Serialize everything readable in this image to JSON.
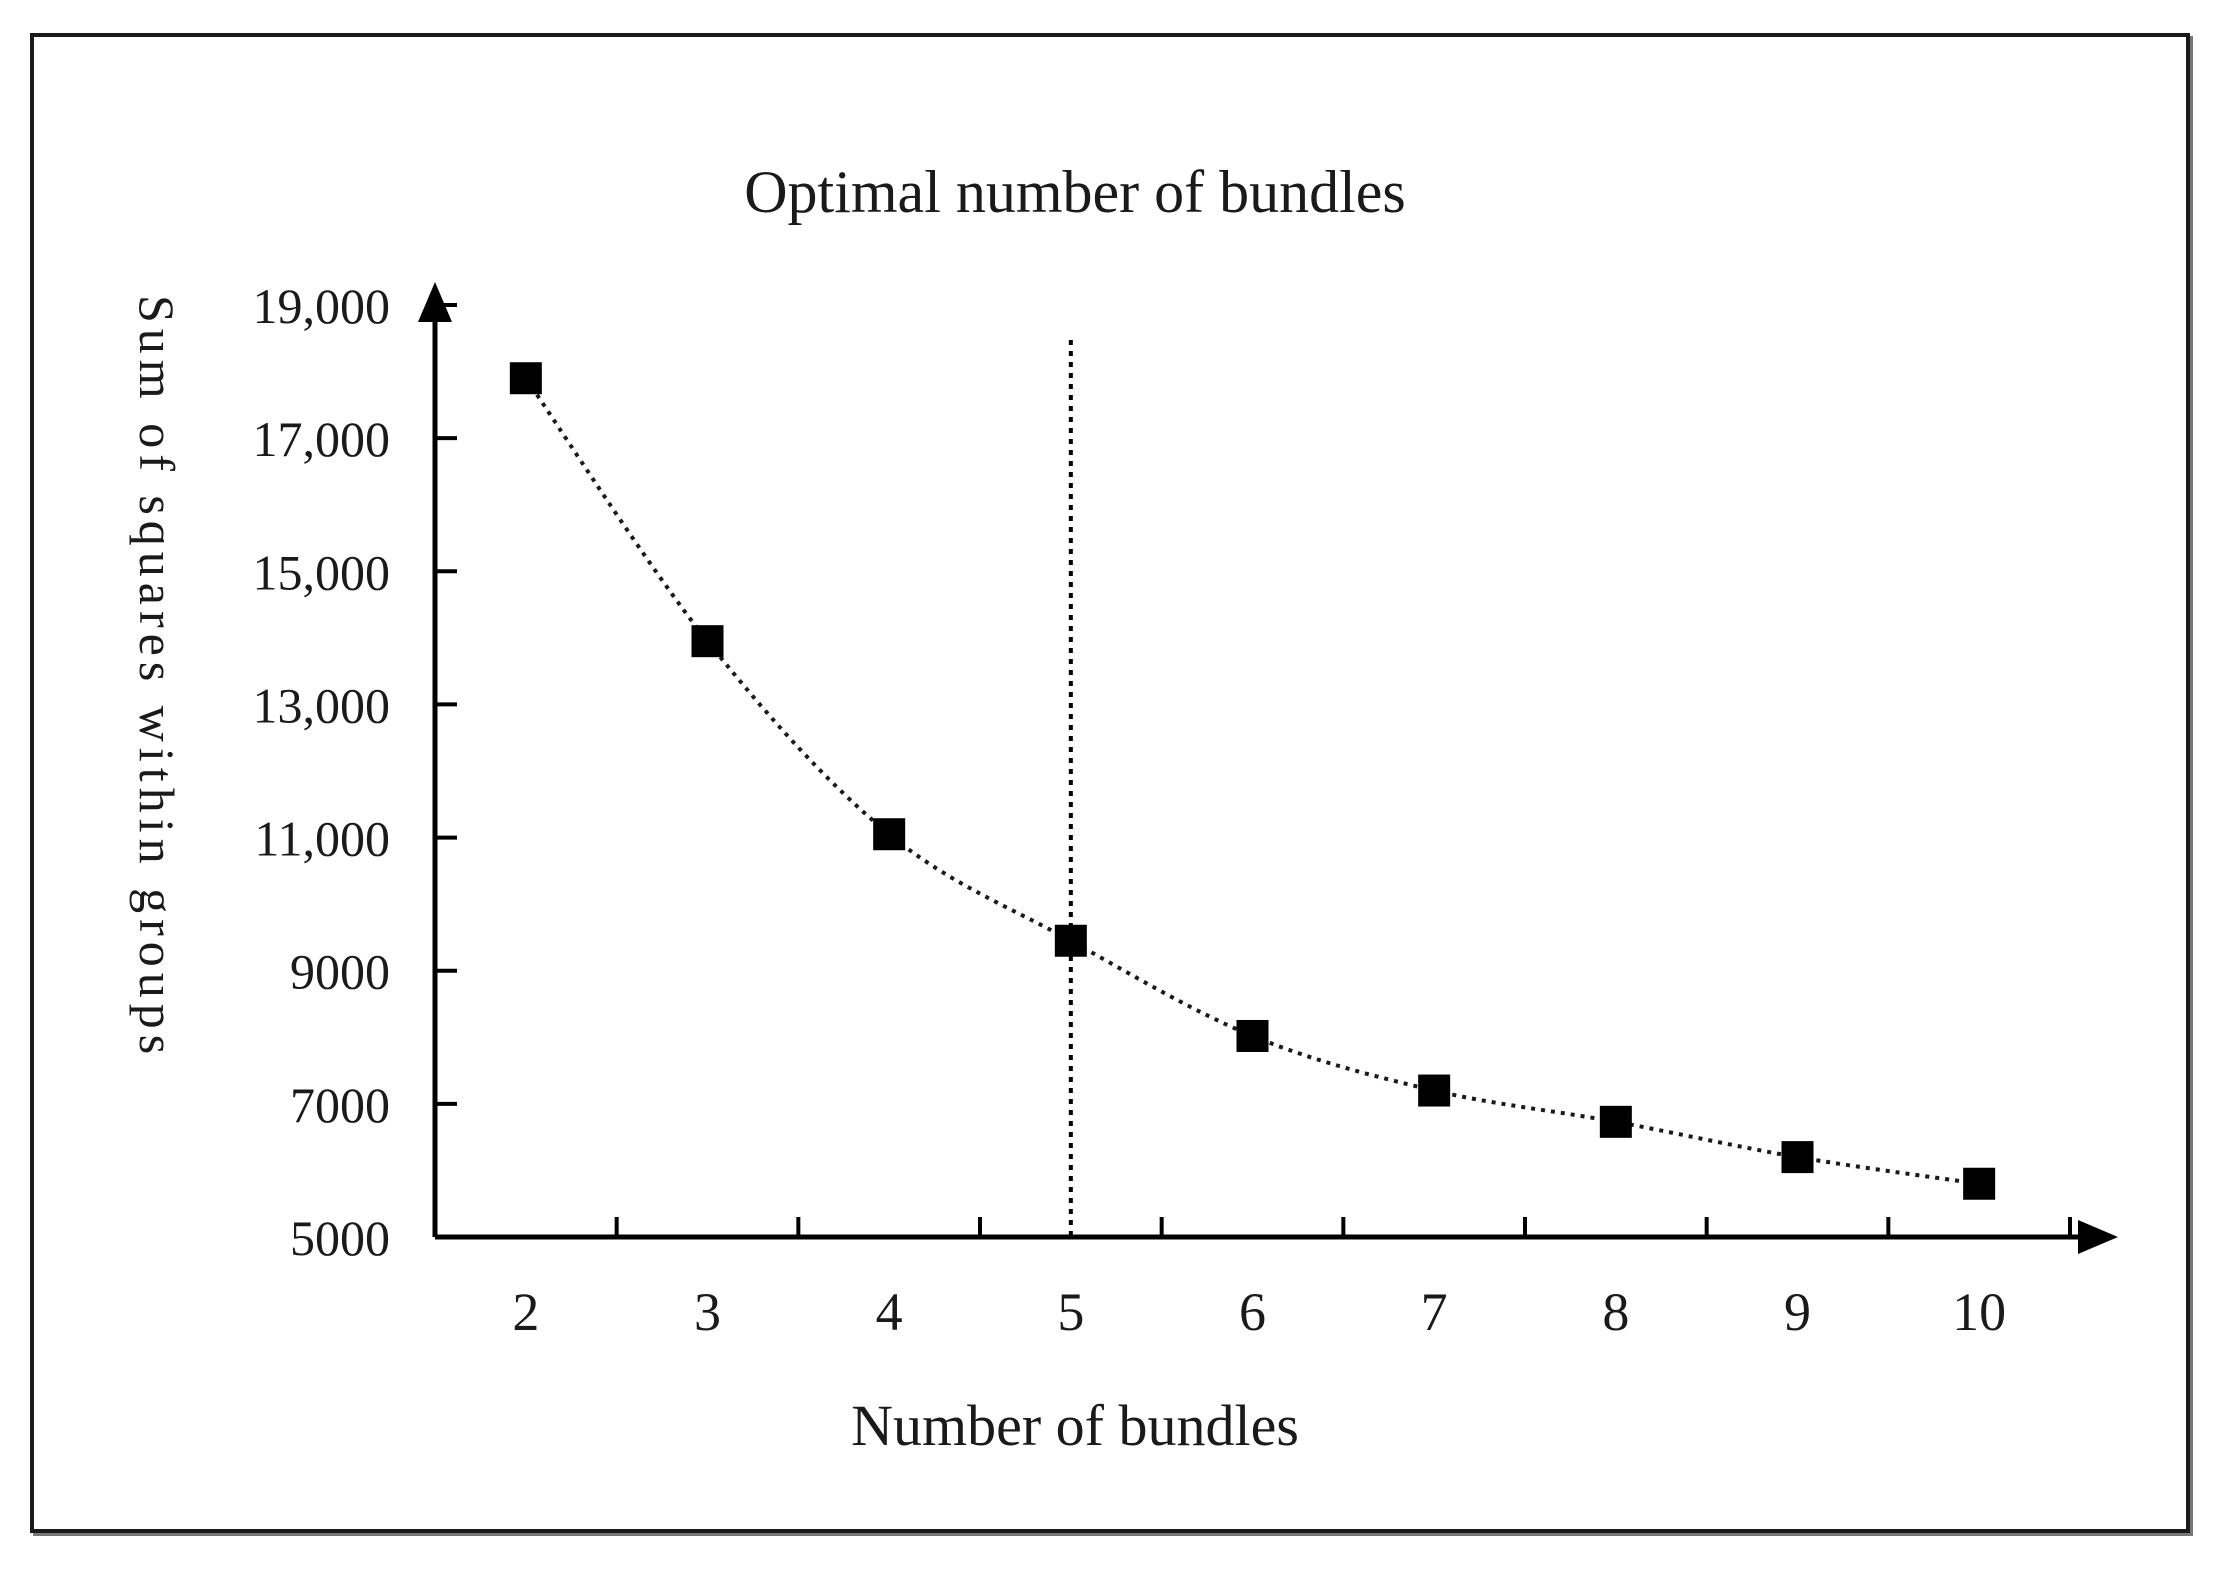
{
  "chart_data": {
    "type": "line",
    "title": "Optimal number of bundles",
    "xlabel": "Number of bundles",
    "ylabel": "Sum of squares within groups",
    "x": [
      2,
      3,
      4,
      5,
      6,
      7,
      8,
      9,
      10
    ],
    "x_tick_labels": [
      "2",
      "3",
      "4",
      "5",
      "6",
      "7",
      "8",
      "9",
      "10"
    ],
    "xlim": [
      1.5,
      10.5
    ],
    "series": [
      {
        "values": [
          17900,
          13950,
          11050,
          9450,
          8020,
          7200,
          6730,
          6200,
          5800
        ]
      }
    ],
    "y_ticks": [
      5000,
      7000,
      9000,
      11000,
      13000,
      15000,
      17000,
      19000
    ],
    "y_tick_labels": [
      "5000",
      "7000",
      "9000",
      "11,000",
      "13,000",
      "15,000",
      "17,000",
      "19,000"
    ],
    "ylim": [
      5000,
      19000
    ],
    "reference_line_x": 5,
    "marker": "square",
    "line_style": "dotted",
    "grid": false,
    "colors": {
      "marker": "#000000",
      "line": "#1a1a1a",
      "axis": "#000000"
    }
  }
}
